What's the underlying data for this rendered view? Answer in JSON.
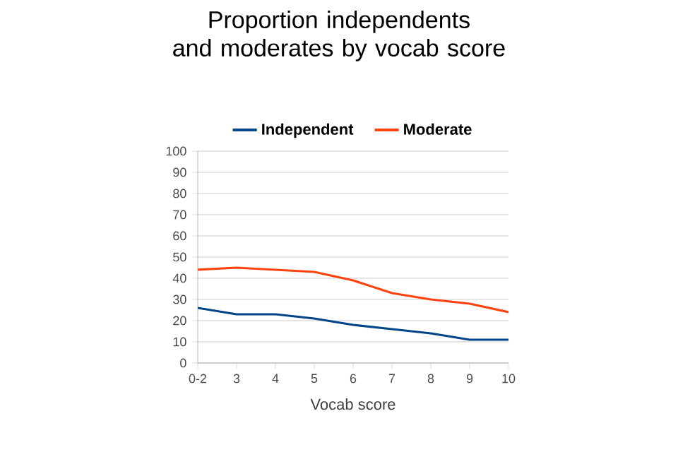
{
  "chart_data": {
    "type": "line",
    "title": "Proportion independents\nand moderates by vocab score",
    "xlabel": "Vocab score",
    "categories": [
      "0-2",
      "3",
      "4",
      "5",
      "6",
      "7",
      "8",
      "9",
      "10"
    ],
    "series": [
      {
        "name": "Independent",
        "color": "#004586",
        "values": [
          26,
          23,
          23,
          21,
          18,
          16,
          14,
          11,
          11
        ]
      },
      {
        "name": "Moderate",
        "color": "#ff420e",
        "values": [
          44,
          45,
          44,
          43,
          39,
          33,
          30,
          28,
          24
        ]
      }
    ],
    "ylim": [
      0,
      100
    ],
    "yticks": [
      0,
      10,
      20,
      30,
      40,
      50,
      60,
      70,
      80,
      90,
      100
    ],
    "grid": "y",
    "legend": "top",
    "marker": "none",
    "line_style": "solid"
  }
}
